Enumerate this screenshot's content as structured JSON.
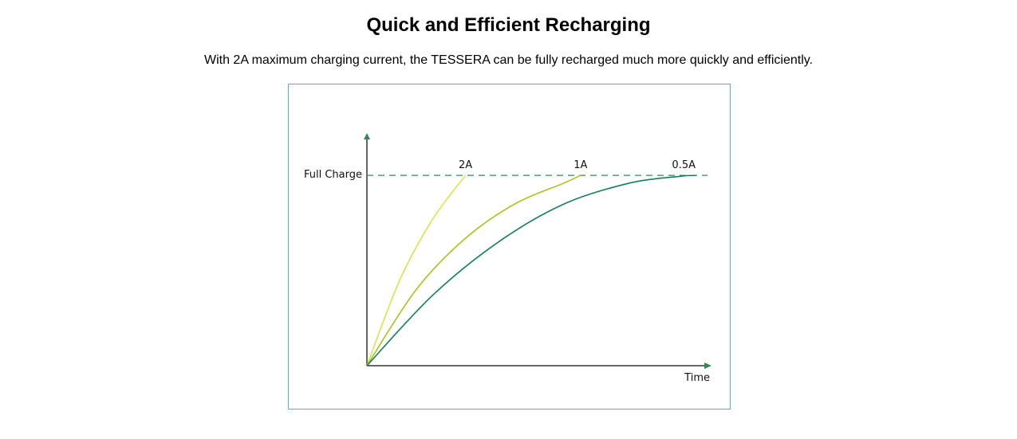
{
  "header": {
    "title": "Quick and Efficient Recharging",
    "subtitle": "With 2A maximum charging current, the TESSERA can be fully recharged much more quickly and efficiently."
  },
  "chart_data": {
    "type": "line",
    "title": "",
    "xlabel": "Time",
    "ylabel": "",
    "reference_line": {
      "label": "Full Charge",
      "value": 1.0,
      "style": "dashed",
      "color": "#2e8b57"
    },
    "xlim": [
      0,
      1
    ],
    "ylim": [
      0,
      1.21
    ],
    "grid": false,
    "legend": "none",
    "series": [
      {
        "name": "2A",
        "color": "#d9e34a",
        "points": [
          [
            0,
            0
          ],
          [
            0.1,
            0.45
          ],
          [
            0.2,
            0.77
          ],
          [
            0.3,
            1.0
          ]
        ]
      },
      {
        "name": "1A",
        "color": "#a9c419",
        "points": [
          [
            0,
            0
          ],
          [
            0.15,
            0.4
          ],
          [
            0.3,
            0.67
          ],
          [
            0.45,
            0.85
          ],
          [
            0.6,
            0.96
          ],
          [
            0.65,
            1.0
          ]
        ]
      },
      {
        "name": "0.5A",
        "color": "#12805a",
        "points": [
          [
            0,
            0
          ],
          [
            0.2,
            0.37
          ],
          [
            0.4,
            0.65
          ],
          [
            0.6,
            0.85
          ],
          [
            0.8,
            0.96
          ],
          [
            0.95,
            0.995
          ],
          [
            1.0,
            1.0
          ]
        ]
      }
    ]
  },
  "colors": {
    "frame_border": "#4fb8b2",
    "axis": "#333333",
    "arrow": "#2e8b57"
  }
}
